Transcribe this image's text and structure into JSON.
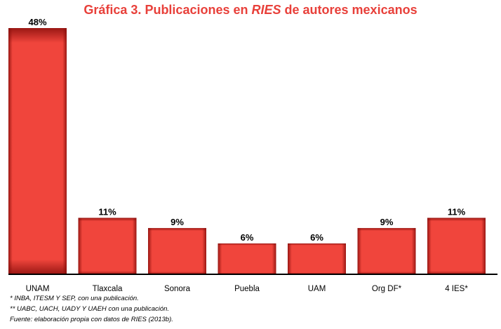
{
  "chart_data": {
    "type": "bar",
    "title_parts": [
      "Gráfica 3. Publicaciones en ",
      "RIES",
      " de autores mexicanos"
    ],
    "categories": [
      "UNAM",
      "Tlaxcala",
      "Sonora",
      "Puebla",
      "UAM",
      "Org DF*",
      "4 IES*"
    ],
    "values": [
      48,
      11,
      9,
      6,
      6,
      9,
      11
    ],
    "value_labels": [
      "48%",
      "11%",
      "9%",
      "6%",
      "6%",
      "9%",
      "11%"
    ],
    "unit": "%",
    "xlabel": "",
    "ylabel": "",
    "ylim": [
      0,
      48
    ],
    "grid": false,
    "legend": "none",
    "colors": {
      "bar_center": "#f0453c",
      "bar_edge": "#8a0f0c",
      "title": "#e8403a",
      "axis": "#000000"
    }
  },
  "footnotes": [
    "* INBA, ITESM Y SEP, con una publicación.",
    "** UABC, UACH, UADY Y UAEH con una publicación.",
    "Fuente: elaboración propia con datos de RIES (2013b)."
  ]
}
